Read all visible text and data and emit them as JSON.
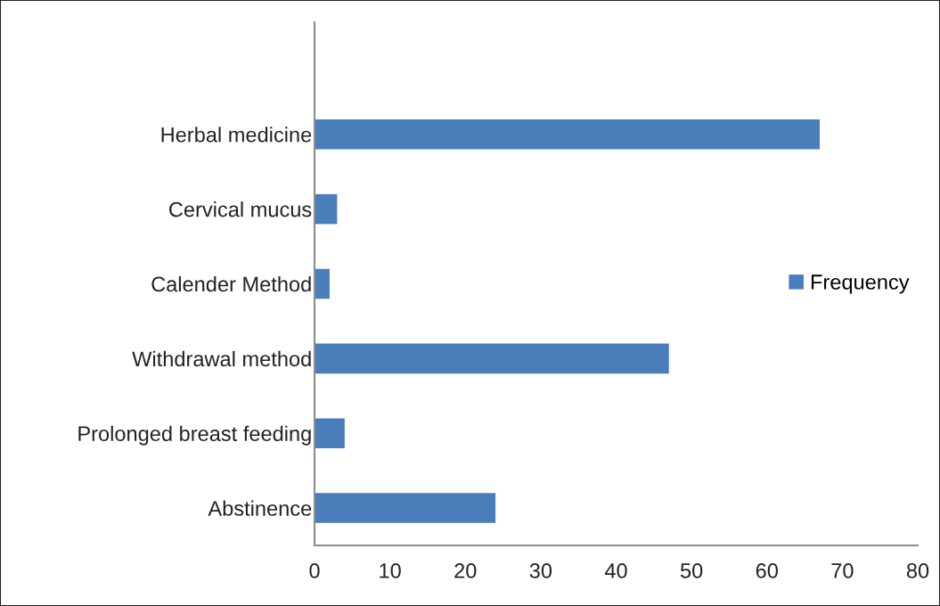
{
  "chart_data": {
    "type": "bar",
    "orientation": "horizontal",
    "categories": [
      "Herbal medicine",
      "Cervical mucus",
      "Calender Method",
      "Withdrawal method",
      "Prolonged breast feeding",
      "Abstinence"
    ],
    "series": [
      {
        "name": "Frequency",
        "color": "#4a7ebb",
        "values": [
          67,
          3,
          2,
          47,
          4,
          24
        ]
      }
    ],
    "xlim": [
      0,
      80
    ],
    "xticks": [
      0,
      10,
      20,
      30,
      40,
      50,
      60,
      70,
      80
    ],
    "legend": "right",
    "grid": false
  }
}
